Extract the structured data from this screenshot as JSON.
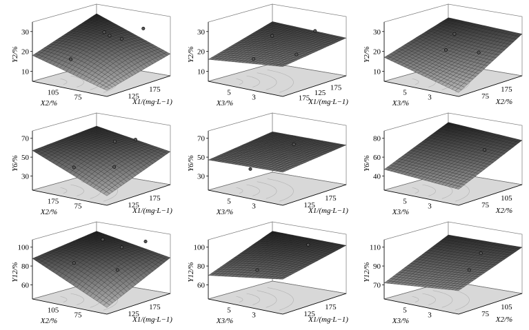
{
  "figure": {
    "axis_text": {
      "x1": "X1/(mg·L−1)",
      "x2": "X2/%",
      "x3": "X3/%"
    }
  },
  "chart_data": [
    {
      "type": "surface",
      "row": 0,
      "col": 0,
      "zlabel": "Y2/%",
      "z_ticks": [
        10,
        20,
        30
      ],
      "zlim": [
        5,
        32
      ],
      "left_axis": {
        "label": "X2/%",
        "ticks": [
          105,
          75
        ]
      },
      "right_axis": {
        "label": "X1/(mg·L−1)",
        "ticks": [
          125,
          175
        ]
      },
      "surface_corners": {
        "back": 30,
        "left": 18,
        "right": 16,
        "front": 8
      },
      "curvature": 4,
      "points": [
        [
          0.32,
          0.25,
          25
        ],
        [
          0.6,
          0.3,
          24
        ],
        [
          0.72,
          0.1,
          28
        ],
        [
          0.3,
          0.75,
          16
        ],
        [
          0.35,
          0.2,
          23
        ]
      ]
    },
    {
      "type": "surface",
      "row": 0,
      "col": 1,
      "zlabel": "Y2/%",
      "z_ticks": [
        10,
        20,
        30
      ],
      "zlim": [
        5,
        32
      ],
      "left_axis": {
        "label": "X3/%",
        "ticks": [
          5,
          3
        ]
      },
      "right_axis": {
        "label": "X1/(mg·L−1)",
        "ticks": [
          175,
          125,
          175
        ]
      },
      "surface_corners": {
        "back": 26,
        "left": 16,
        "right": 24,
        "front": 20
      },
      "curvature": 1,
      "points": [
        [
          0.3,
          0.35,
          24
        ],
        [
          0.75,
          0.2,
          28
        ],
        [
          0.8,
          0.55,
          20
        ],
        [
          0.35,
          0.7,
          16
        ]
      ]
    },
    {
      "type": "surface",
      "row": 0,
      "col": 2,
      "zlabel": "Y2/%",
      "z_ticks": [
        10,
        20,
        30
      ],
      "zlim": [
        5,
        32
      ],
      "left_axis": {
        "label": "X3/%",
        "ticks": [
          5,
          3
        ]
      },
      "right_axis": {
        "label": "X2/%",
        "ticks": [
          75,
          175
        ]
      },
      "surface_corners": {
        "back": 28,
        "left": 17,
        "right": 26,
        "front": 7
      },
      "curvature": -1,
      "points": [
        [
          0.3,
          0.25,
          24
        ],
        [
          0.8,
          0.45,
          20
        ],
        [
          0.4,
          0.5,
          19
        ]
      ]
    },
    {
      "type": "surface",
      "row": 1,
      "col": 0,
      "zlabel": "Y6/%",
      "z_ticks": [
        30,
        50,
        70
      ],
      "zlim": [
        15,
        72
      ],
      "left_axis": {
        "label": "X2/%",
        "ticks": [
          175,
          75
        ]
      },
      "right_axis": {
        "label": "X1/(mg·L−1)",
        "ticks": [
          125,
          175
        ]
      },
      "surface_corners": {
        "back": 64,
        "left": 57,
        "right": 50,
        "front": 25
      },
      "curvature": 6,
      "points": [
        [
          0.55,
          0.35,
          62
        ],
        [
          0.7,
          0.2,
          63
        ],
        [
          0.3,
          0.7,
          38
        ],
        [
          0.8,
          0.65,
          45
        ]
      ]
    },
    {
      "type": "surface",
      "row": 1,
      "col": 1,
      "zlabel": "Y6/%",
      "z_ticks": [
        30,
        50,
        70
      ],
      "zlim": [
        15,
        72
      ],
      "left_axis": {
        "label": "X3/%",
        "ticks": [
          5,
          3
        ]
      },
      "right_axis": {
        "label": "X1/(mg·L−1)",
        "ticks": [
          125,
          175
        ]
      },
      "surface_corners": {
        "back": 58,
        "left": 47,
        "right": 57,
        "front": 50
      },
      "curvature": 2,
      "points": [
        [
          0.55,
          0.3,
          58
        ],
        [
          0.35,
          0.75,
          38
        ]
      ]
    },
    {
      "type": "surface",
      "row": 1,
      "col": 2,
      "zlabel": "Y6/%",
      "z_ticks": [
        40,
        60,
        80
      ],
      "zlim": [
        25,
        82
      ],
      "left_axis": {
        "label": "X3/%",
        "ticks": [
          5,
          3
        ]
      },
      "right_axis": {
        "label": "X2/%",
        "ticks": [
          75,
          105
        ]
      },
      "surface_corners": {
        "back": 78,
        "left": 47,
        "right": 72,
        "front": 42
      },
      "curvature": 0,
      "points": [
        [
          0.75,
          0.3,
          65
        ]
      ]
    },
    {
      "type": "surface",
      "row": 2,
      "col": 0,
      "zlabel": "Y12/%",
      "z_ticks": [
        60,
        80,
        100
      ],
      "zlim": [
        45,
        102
      ],
      "left_axis": {
        "label": "X2/%",
        "ticks": [
          105,
          75
        ]
      },
      "right_axis": {
        "label": "X1/(mg·L−1)",
        "ticks": [
          125,
          175
        ]
      },
      "surface_corners": {
        "back": 98,
        "left": 88,
        "right": 83,
        "front": 52
      },
      "curvature": 8,
      "points": [
        [
          0.3,
          0.25,
          98
        ],
        [
          0.6,
          0.3,
          95
        ],
        [
          0.75,
          0.1,
          99
        ],
        [
          0.3,
          0.7,
          82
        ],
        [
          0.8,
          0.6,
          80
        ]
      ]
    },
    {
      "type": "surface",
      "row": 2,
      "col": 1,
      "zlabel": "Y12/%",
      "z_ticks": [
        60,
        80,
        100
      ],
      "zlim": [
        45,
        102
      ],
      "left_axis": {
        "label": "X3/%",
        "ticks": [
          5,
          3
        ]
      },
      "right_axis": {
        "label": "X1/(mg·L−1)",
        "ticks": [
          125,
          175
        ]
      },
      "surface_corners": {
        "back": 98,
        "left": 70,
        "right": 96,
        "front": 82
      },
      "curvature": 3,
      "points": [
        [
          0.7,
          0.25,
          98
        ],
        [
          0.4,
          0.7,
          76
        ]
      ]
    },
    {
      "type": "surface",
      "row": 2,
      "col": 2,
      "zlabel": "Y12/%",
      "z_ticks": [
        70,
        90,
        110
      ],
      "zlim": [
        55,
        112
      ],
      "left_axis": {
        "label": "X3/%",
        "ticks": [
          5,
          3
        ]
      },
      "right_axis": {
        "label": "X2/%",
        "ticks": [
          75,
          105
        ]
      },
      "surface_corners": {
        "back": 104,
        "left": 72,
        "right": 104,
        "front": 80
      },
      "curvature": -1,
      "points": [
        [
          0.7,
          0.3,
          100
        ],
        [
          0.8,
          0.6,
          90
        ]
      ]
    }
  ]
}
